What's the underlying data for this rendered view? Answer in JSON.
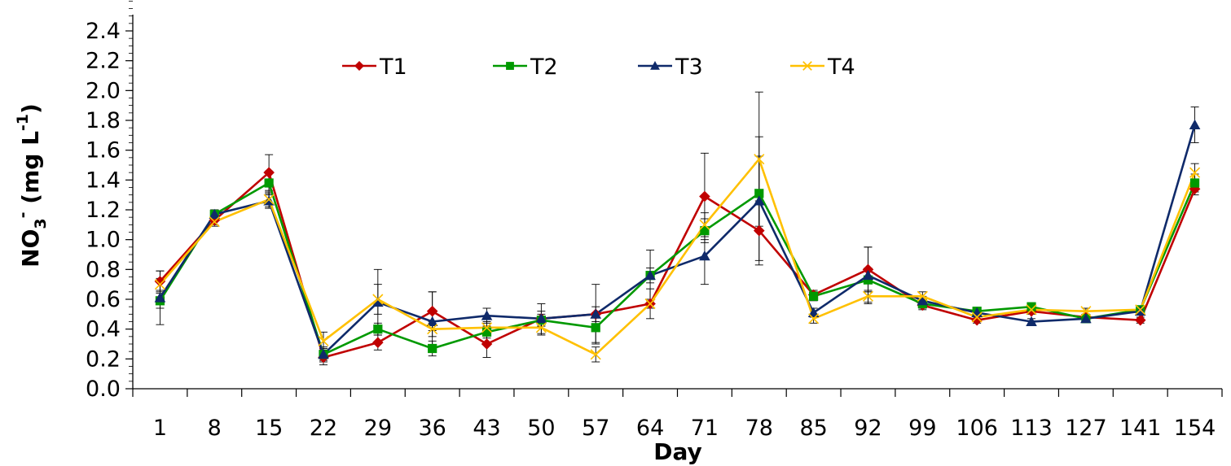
{
  "chart_data": {
    "type": "line",
    "xlabel": "Day",
    "ylabel_main": "NO",
    "ylabel_sub": "3",
    "ylabel_sup": "-",
    "ylabel_unit": " (mg L",
    "ylabel_unit_sup": "-1",
    "ylabel_close": ")",
    "ylim": [
      0.0,
      2.4
    ],
    "yticks": [
      "0.0",
      "0.2",
      "0.4",
      "0.6",
      "0.8",
      "1.0",
      "1.2",
      "1.4",
      "1.6",
      "1.8",
      "2.0",
      "2.2",
      "2.4"
    ],
    "categories": [
      "1",
      "8",
      "15",
      "22",
      "29",
      "36",
      "43",
      "50",
      "57",
      "64",
      "71",
      "78",
      "85",
      "92",
      "99",
      "106",
      "113",
      "127",
      "141",
      "154"
    ],
    "legend_position": "top-center",
    "grid": false,
    "series": [
      {
        "name": "T1",
        "color": "#c00000",
        "marker": "diamond",
        "values": [
          0.72,
          1.13,
          1.45,
          0.21,
          0.31,
          0.52,
          0.3,
          0.47,
          0.5,
          0.57,
          1.29,
          1.06,
          0.63,
          0.8,
          0.56,
          0.46,
          0.52,
          0.48,
          0.46,
          1.34
        ],
        "errors": [
          0.07,
          0.03,
          0.12,
          0.05,
          0.05,
          0.13,
          0.09,
          0.1,
          0.05,
          0.03,
          0.29,
          0.2,
          0.03,
          0.15,
          0.03,
          0.02,
          0.02,
          0.02,
          0.02,
          0.04
        ]
      },
      {
        "name": "T2",
        "color": "#009900",
        "marker": "square",
        "values": [
          0.59,
          1.17,
          1.38,
          0.23,
          0.4,
          0.27,
          0.38,
          0.46,
          0.41,
          0.76,
          1.06,
          1.31,
          0.62,
          0.73,
          0.57,
          0.52,
          0.55,
          0.47,
          0.53,
          1.38
        ],
        "errors": [
          0.05,
          0.03,
          0.08,
          0.04,
          0.04,
          0.05,
          0.04,
          0.04,
          0.1,
          0.05,
          0.08,
          0.25,
          0.03,
          0.08,
          0.03,
          0.02,
          0.02,
          0.02,
          0.02,
          0.06
        ]
      },
      {
        "name": "T3",
        "color": "#0f2a6a",
        "marker": "triangle",
        "values": [
          0.61,
          1.17,
          1.26,
          0.23,
          0.58,
          0.45,
          0.49,
          0.47,
          0.5,
          0.76,
          0.89,
          1.26,
          0.51,
          0.76,
          0.59,
          0.51,
          0.45,
          0.47,
          0.52,
          1.77
        ],
        "errors": [
          0.18,
          0.03,
          0.05,
          0.05,
          0.22,
          0.2,
          0.05,
          0.05,
          0.2,
          0.17,
          0.19,
          0.43,
          0.03,
          0.19,
          0.03,
          0.02,
          0.02,
          0.02,
          0.02,
          0.12
        ]
      },
      {
        "name": "T4",
        "color": "#ffc000",
        "marker": "x",
        "values": [
          0.7,
          1.12,
          1.27,
          0.32,
          0.6,
          0.4,
          0.41,
          0.41,
          0.23,
          0.57,
          1.1,
          1.54,
          0.47,
          0.62,
          0.62,
          0.48,
          0.53,
          0.52,
          0.53,
          1.45
        ],
        "errors": [
          0.04,
          0.03,
          0.05,
          0.06,
          0.1,
          0.05,
          0.04,
          0.05,
          0.05,
          0.1,
          0.08,
          0.45,
          0.03,
          0.04,
          0.03,
          0.02,
          0.02,
          0.02,
          0.02,
          0.06
        ]
      }
    ]
  }
}
